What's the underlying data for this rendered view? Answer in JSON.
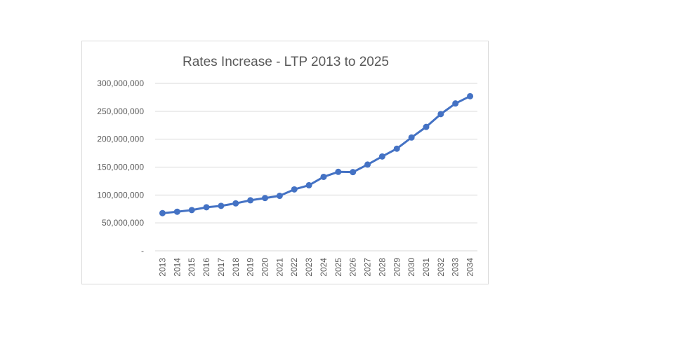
{
  "chart_data": {
    "type": "line",
    "title": "Rates Increase - LTP 2013 to 2025",
    "xlabel": "",
    "ylabel": "",
    "ylim": [
      0,
      300000000
    ],
    "y_ticks": [
      "-",
      "50,000,000",
      "100,000,000",
      "150,000,000",
      "200,000,000",
      "250,000,000",
      "300,000,000"
    ],
    "y_tick_values": [
      0,
      50000000,
      100000000,
      150000000,
      200000000,
      250000000,
      300000000
    ],
    "grid": true,
    "legend": "none",
    "series_color": "#4472c4",
    "grid_color": "#d9d9d9",
    "categories": [
      "2013",
      "2014",
      "2015",
      "2016",
      "2017",
      "2018",
      "2019",
      "2020",
      "2021",
      "2022",
      "2023",
      "2024",
      "2025",
      "2026",
      "2027",
      "2028",
      "2029",
      "2030",
      "2031",
      "2032",
      "2033",
      "2034"
    ],
    "series": [
      {
        "values": [
          67500000,
          70000000,
          73000000,
          78000000,
          80500000,
          85000000,
          90500000,
          94500000,
          98500000,
          110000000,
          117500000,
          132500000,
          141500000,
          141000000,
          154500000,
          169000000,
          183000000,
          203000000,
          222000000,
          245000000,
          264000000,
          277000000
        ]
      }
    ]
  }
}
